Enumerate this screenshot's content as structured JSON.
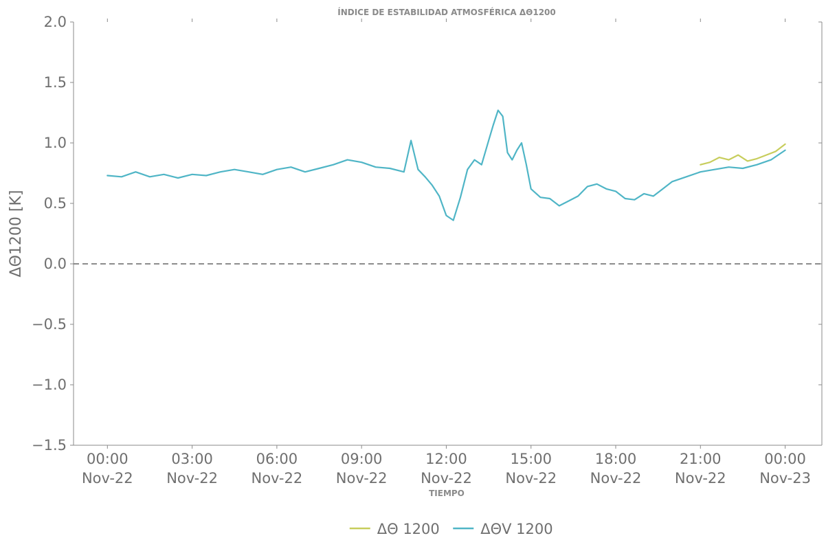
{
  "chart_data": {
    "type": "line",
    "title": "ÍNDICE DE ESTABILIDAD ATMOSFÉRICA ΔΘ1200",
    "xlabel": "TIEMPO",
    "ylabel": "ΔΘ1200 [K]",
    "ylim": [
      -1.5,
      2.0
    ],
    "xlim_hours": [
      -1.2,
      25.3
    ],
    "yticks": [
      "2.0",
      "1.5",
      "1.0",
      "0.5",
      "0.0",
      "−0.5",
      "−1.0",
      "−1.5"
    ],
    "xticks": [
      {
        "time": "00:00",
        "date": "Nov-22"
      },
      {
        "time": "03:00",
        "date": "Nov-22"
      },
      {
        "time": "06:00",
        "date": "Nov-22"
      },
      {
        "time": "09:00",
        "date": "Nov-22"
      },
      {
        "time": "12:00",
        "date": "Nov-22"
      },
      {
        "time": "15:00",
        "date": "Nov-22"
      },
      {
        "time": "18:00",
        "date": "Nov-22"
      },
      {
        "time": "21:00",
        "date": "Nov-22"
      },
      {
        "time": "00:00",
        "date": "Nov-23"
      }
    ],
    "reference_line": {
      "y": 0.0,
      "style": "dashed",
      "color": "#666666"
    },
    "legend_position": "bottom-center",
    "series": [
      {
        "name": "ΔΘ 1200",
        "color": "#c7cd5c",
        "x": [
          "21:00",
          "21:20",
          "21:40",
          "22:00",
          "22:20",
          "22:40",
          "23:00",
          "23:20",
          "23:40",
          "24:00"
        ],
        "y": [
          0.82,
          0.84,
          0.88,
          0.86,
          0.9,
          0.85,
          0.87,
          0.9,
          0.93,
          0.99
        ]
      },
      {
        "name": "ΔΘV 1200",
        "color": "#4fb5c6",
        "x": [
          "00:00",
          "00:30",
          "01:00",
          "01:30",
          "02:00",
          "02:30",
          "03:00",
          "03:30",
          "04:00",
          "04:30",
          "05:00",
          "05:30",
          "06:00",
          "06:30",
          "07:00",
          "07:30",
          "08:00",
          "08:30",
          "09:00",
          "09:30",
          "10:00",
          "10:30",
          "10:45",
          "11:00",
          "11:15",
          "11:30",
          "11:45",
          "12:00",
          "12:15",
          "12:30",
          "12:45",
          "13:00",
          "13:15",
          "13:30",
          "13:40",
          "13:50",
          "14:00",
          "14:10",
          "14:20",
          "14:30",
          "14:40",
          "14:50",
          "15:00",
          "15:20",
          "15:40",
          "16:00",
          "16:20",
          "16:40",
          "17:00",
          "17:20",
          "17:40",
          "18:00",
          "18:20",
          "18:40",
          "19:00",
          "19:20",
          "19:40",
          "20:00",
          "20:30",
          "21:00",
          "21:30",
          "22:00",
          "22:30",
          "23:00",
          "23:30",
          "24:00"
        ],
        "y": [
          0.73,
          0.72,
          0.76,
          0.72,
          0.74,
          0.71,
          0.74,
          0.73,
          0.76,
          0.78,
          0.76,
          0.74,
          0.78,
          0.8,
          0.76,
          0.79,
          0.82,
          0.86,
          0.84,
          0.8,
          0.79,
          0.76,
          1.02,
          0.78,
          0.72,
          0.65,
          0.56,
          0.4,
          0.36,
          0.55,
          0.78,
          0.86,
          0.82,
          1.02,
          1.15,
          1.27,
          1.22,
          0.92,
          0.86,
          0.94,
          1.0,
          0.82,
          0.62,
          0.55,
          0.54,
          0.48,
          0.52,
          0.56,
          0.64,
          0.66,
          0.62,
          0.6,
          0.54,
          0.53,
          0.58,
          0.56,
          0.62,
          0.68,
          0.72,
          0.76,
          0.78,
          0.8,
          0.79,
          0.82,
          0.86,
          0.94
        ]
      }
    ]
  }
}
